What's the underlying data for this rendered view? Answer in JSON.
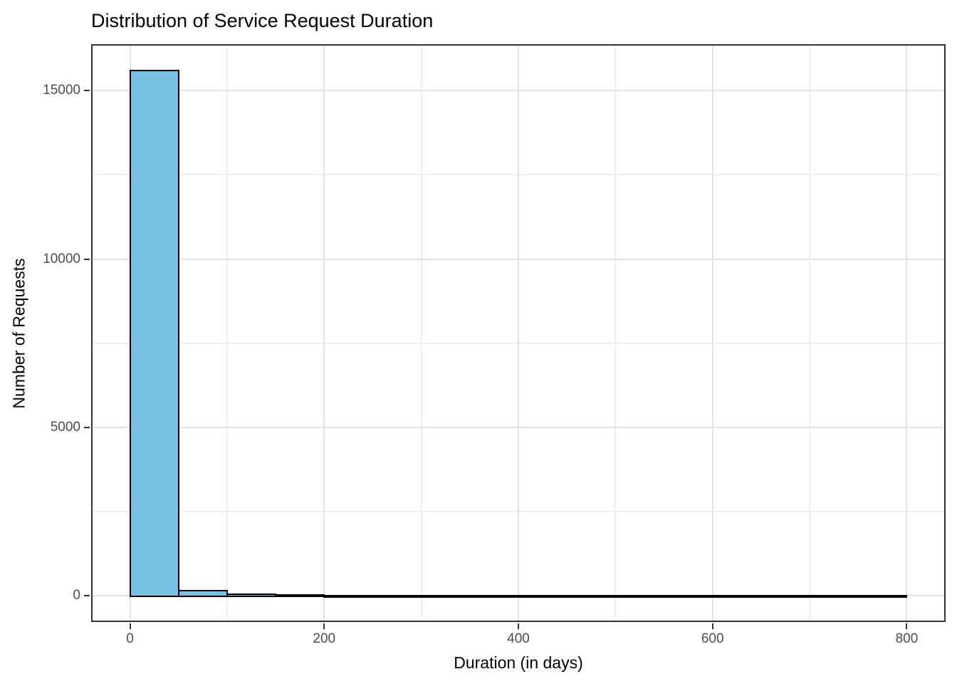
{
  "title": "Distribution of Service Request Duration",
  "chart_data": {
    "type": "bar",
    "subtype": "histogram",
    "title": "Distribution of Service Request Duration",
    "xlabel": "Duration (in days)",
    "ylabel": "Number of Requests",
    "bins": {
      "start": 0,
      "width": 50,
      "end": 800
    },
    "counts": [
      15600,
      150,
      40,
      20,
      12,
      10,
      8,
      8,
      6,
      6,
      5,
      5,
      4,
      4,
      3,
      3
    ],
    "x_ticks": [
      0,
      200,
      400,
      600,
      800
    ],
    "y_ticks": [
      0,
      5000,
      10000,
      15000
    ],
    "x_minor_ticks": [
      100,
      300,
      500,
      700
    ],
    "y_minor_ticks": [
      2500,
      7500,
      12500
    ],
    "xlim": [
      -40,
      840
    ],
    "ylim": [
      -780,
      16380
    ],
    "grid": "on",
    "legend": "none",
    "bar_fill": "#75C0E3",
    "bar_border": "#000000",
    "panel_border": "#333333",
    "grid_major_color": "#E3E3E3",
    "grid_minor_color": "#EFEFEF",
    "tick_color": "#333333",
    "tick_label_color": "#4D4D4D",
    "background": "#FFFFFF"
  }
}
